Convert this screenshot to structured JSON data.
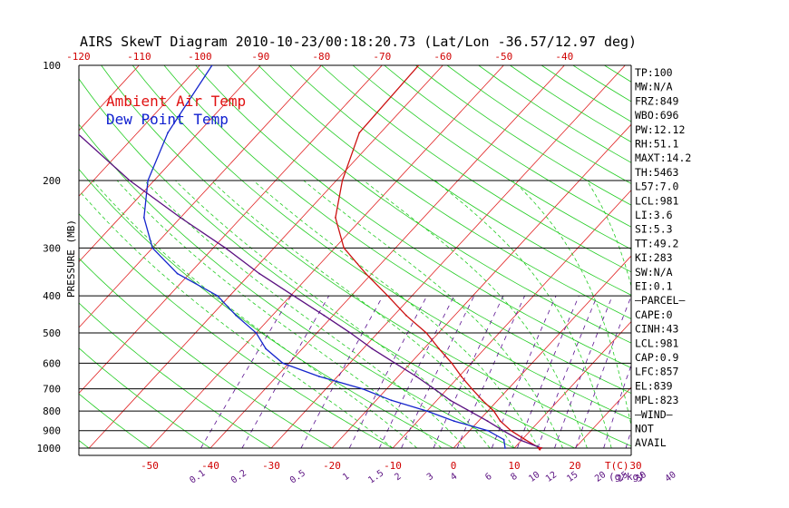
{
  "chart_data": {
    "type": "line",
    "title": "AIRS SkewT Diagram 2010-10-23/00:18:20.73 (Lat/Lon -36.57/12.97 deg)",
    "ylabel": "PRESSURE (MB)",
    "xlabel_unit": "T(C)",
    "mixing_ratio_unit": "(g/kg)",
    "pressure_ticks": [
      100,
      200,
      300,
      400,
      500,
      600,
      700,
      800,
      900,
      1000
    ],
    "top_temp_ticks": [
      -120,
      -110,
      -100,
      -90,
      -80,
      -70,
      -60,
      -50,
      -40
    ],
    "bottom_temp_ticks": [
      -50,
      -40,
      -30,
      -20,
      -10,
      0,
      10,
      20,
      30
    ],
    "mixing_ratio_labels": [
      "0.1",
      "0.2",
      "0.5",
      "1",
      "1.5",
      "2",
      "3",
      "4",
      "6",
      "8",
      "10",
      "12",
      "15",
      "20",
      "25",
      "30",
      "40"
    ],
    "legend": [
      {
        "label": "Ambient Air Temp",
        "color": "#e01010"
      },
      {
        "label": "Dew Point Temp",
        "color": "#1020d0"
      }
    ],
    "series": [
      {
        "name": "Ambient Air Temp",
        "color": "#cc1111",
        "points": [
          [
            1000,
            14.2
          ],
          [
            950,
            10.5
          ],
          [
            900,
            6.8
          ],
          [
            850,
            3.6
          ],
          [
            800,
            1.0
          ],
          [
            750,
            -2.5
          ],
          [
            700,
            -6.0
          ],
          [
            650,
            -9.6
          ],
          [
            600,
            -13.2
          ],
          [
            550,
            -17.5
          ],
          [
            500,
            -22.0
          ],
          [
            450,
            -28.0
          ],
          [
            400,
            -34.0
          ],
          [
            350,
            -41.0
          ],
          [
            300,
            -48.5
          ],
          [
            250,
            -54.5
          ],
          [
            200,
            -59.0
          ],
          [
            150,
            -63.5
          ],
          [
            100,
            -64.0
          ]
        ]
      },
      {
        "name": "Dew Point Temp",
        "color": "#1525cc",
        "points": [
          [
            1000,
            8.5
          ],
          [
            950,
            7.0
          ],
          [
            900,
            3.0
          ],
          [
            850,
            -4.0
          ],
          [
            800,
            -10.0
          ],
          [
            750,
            -17.5
          ],
          [
            700,
            -24.0
          ],
          [
            650,
            -33.0
          ],
          [
            600,
            -41.0
          ],
          [
            550,
            -46.0
          ],
          [
            500,
            -50.0
          ],
          [
            450,
            -56.0
          ],
          [
            400,
            -62.0
          ],
          [
            350,
            -72.0
          ],
          [
            300,
            -80.0
          ],
          [
            250,
            -86.0
          ],
          [
            200,
            -91.0
          ],
          [
            150,
            -95.0
          ],
          [
            100,
            -98.0
          ]
        ]
      },
      {
        "name": "",
        "color": "#5a1080",
        "points": [
          [
            1000,
            14.5
          ],
          [
            950,
            9.5
          ],
          [
            900,
            5.5
          ],
          [
            850,
            1.5
          ],
          [
            800,
            -3.0
          ],
          [
            750,
            -7.8
          ],
          [
            700,
            -12.2
          ],
          [
            650,
            -17.0
          ],
          [
            600,
            -22.5
          ],
          [
            550,
            -28.5
          ],
          [
            500,
            -34.5
          ],
          [
            450,
            -41.5
          ],
          [
            400,
            -49.5
          ],
          [
            350,
            -58.5
          ],
          [
            300,
            -68.0
          ],
          [
            250,
            -80.0
          ],
          [
            200,
            -94.0
          ],
          [
            150,
            -110.0
          ],
          [
            100,
            -125.0
          ]
        ]
      }
    ],
    "indices": [
      "TP:100",
      "MW:N/A",
      "FRZ:849",
      "WBO:696",
      "PW:12.12",
      "RH:51.1",
      "MAXT:14.2",
      "TH:5463",
      "L57:7.0",
      "LCL:981",
      "LI:3.6",
      "SI:5.3",
      "TT:49.2",
      "KI:283",
      "SW:N/A",
      "EI:0.1",
      "—PARCEL—",
      "CAPE:0",
      "CINH:43",
      "LCL:981",
      "CAP:0.9",
      "LFC:857",
      "EL:839",
      "MPL:823",
      "—WIND—",
      "NOT",
      "AVAIL"
    ]
  }
}
